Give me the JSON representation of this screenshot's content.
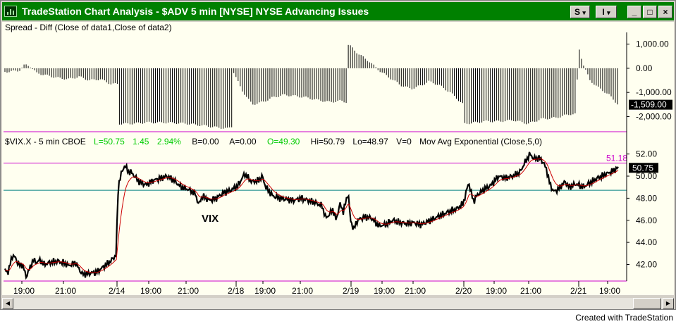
{
  "window": {
    "title": "TradeStation Chart Analysis - $ADV  5 min  [NYSE] NYSE Advancing Issues",
    "btn_s": "S",
    "btn_i": "I",
    "chevron": "▾",
    "minimize": "_",
    "maximize": "□",
    "close": "×"
  },
  "upper_panel": {
    "title": "Spread - Diff (Close of data1,Close of data2)",
    "y_ticks": [
      "1,000.00",
      "0.00",
      "-1,000.00",
      "-2,000.00"
    ],
    "last_value": "-1,509.00"
  },
  "lower_panel": {
    "header": {
      "symbol": "$VIX.X - 5 min  CBOE",
      "last": "L=50.75",
      "change": "1.45",
      "change_pct": "2.94%",
      "bid": "B=0.00",
      "ask": "A=0.00",
      "open": "O=49.30",
      "hi": "Hi=50.79",
      "lo": "Lo=48.97",
      "vol": "V=0",
      "indicator": "Mov Avg Exponential (Close,5,0)"
    },
    "y_ticks": [
      "52.00",
      "50.00",
      "48.00",
      "46.00",
      "44.00",
      "42.00"
    ],
    "last_value": "50.75",
    "ref_value": "51.18",
    "annotation": "VIX"
  },
  "x_axis": {
    "labels": [
      "19:00",
      "21:00",
      "2/14",
      "19:00",
      "21:00",
      "2/18",
      "19:00",
      "21:00",
      "2/19",
      "19:00",
      "21:00",
      "2/20",
      "19:00",
      "21:00",
      "2/21",
      "19:00"
    ]
  },
  "footer": {
    "credit": "Created with TradeStation"
  },
  "colors": {
    "title_bar": "#008000",
    "chart_bg": "#fffff0",
    "green_text": "#00cc00",
    "magenta_line": "#cc00cc",
    "teal_line": "#008080",
    "ema_line": "#cc0000",
    "last_box": "#000000"
  },
  "chart_data": [
    {
      "type": "bar",
      "title": "Spread - Diff (Close of data1,Close of data2)",
      "ylim": [
        -2600,
        1400
      ],
      "yticks": [
        1000,
        0,
        -1000,
        -2000
      ],
      "anchors": [
        [
          0,
          -150
        ],
        [
          20,
          -100
        ],
        [
          28,
          150
        ],
        [
          35,
          100
        ],
        [
          45,
          -200
        ],
        [
          60,
          -300
        ],
        [
          75,
          -400
        ],
        [
          90,
          -450
        ],
        [
          105,
          -350
        ],
        [
          120,
          -500
        ],
        [
          135,
          -450
        ],
        [
          150,
          -650
        ],
        [
          159,
          -650
        ],
        [
          160,
          -2300
        ],
        [
          175,
          -2300
        ],
        [
          200,
          -2250
        ],
        [
          230,
          -2250
        ],
        [
          260,
          -2300
        ],
        [
          300,
          -2450
        ],
        [
          315,
          -2500
        ],
        [
          322,
          -2400
        ],
        [
          323,
          -100
        ],
        [
          335,
          -900
        ],
        [
          350,
          -1500
        ],
        [
          365,
          -1400
        ],
        [
          380,
          -1200
        ],
        [
          395,
          -1100
        ],
        [
          410,
          -1150
        ],
        [
          425,
          -1200
        ],
        [
          440,
          -1300
        ],
        [
          460,
          -1400
        ],
        [
          475,
          -1350
        ],
        [
          483,
          -1400
        ],
        [
          484,
          1000
        ],
        [
          490,
          900
        ],
        [
          500,
          600
        ],
        [
          515,
          300
        ],
        [
          530,
          -100
        ],
        [
          545,
          -400
        ],
        [
          560,
          -700
        ],
        [
          575,
          -850
        ],
        [
          590,
          -700
        ],
        [
          600,
          -550
        ],
        [
          615,
          -700
        ],
        [
          630,
          -1000
        ],
        [
          645,
          -1400
        ],
        [
          649,
          -1500
        ],
        [
          650,
          -2300
        ],
        [
          680,
          -2200
        ],
        [
          700,
          -2200
        ],
        [
          720,
          -2150
        ],
        [
          740,
          -2300
        ],
        [
          760,
          -2100
        ],
        [
          780,
          -2050
        ],
        [
          800,
          -1900
        ],
        [
          808,
          -1900
        ],
        [
          812,
          900
        ],
        [
          818,
          200
        ],
        [
          828,
          -500
        ],
        [
          840,
          -800
        ],
        [
          855,
          -1100
        ],
        [
          868,
          -1509
        ]
      ]
    },
    {
      "type": "line",
      "title": "$VIX.X - 5 min  CBOE",
      "ylim": [
        40.5,
        53.0
      ],
      "yticks": [
        52,
        50,
        48,
        46,
        44,
        42
      ],
      "reference_lines": [
        51.18,
        48.72
      ],
      "series": [
        {
          "name": "$VIX.X",
          "points": [
            [
              0,
              41.5
            ],
            [
              5,
              41.3
            ],
            [
              10,
              42.8
            ],
            [
              15,
              42.6
            ],
            [
              20,
              41.9
            ],
            [
              25,
              42.0
            ],
            [
              30,
              40.9
            ],
            [
              35,
              41.6
            ],
            [
              40,
              42.4
            ],
            [
              45,
              42.2
            ],
            [
              50,
              42.4
            ],
            [
              55,
              42.0
            ],
            [
              65,
              42.2
            ],
            [
              75,
              42.3
            ],
            [
              85,
              42.1
            ],
            [
              90,
              41.9
            ],
            [
              95,
              42.0
            ],
            [
              100,
              42.2
            ],
            [
              105,
              41.6
            ],
            [
              110,
              41.1
            ],
            [
              120,
              41.2
            ],
            [
              130,
              41.3
            ],
            [
              140,
              41.8
            ],
            [
              150,
              42.3
            ],
            [
              158,
              42.9
            ],
            [
              160,
              48.2
            ],
            [
              162,
              49.5
            ],
            [
              165,
              50.2
            ],
            [
              170,
              51.0
            ],
            [
              175,
              50.4
            ],
            [
              180,
              50.3
            ],
            [
              190,
              49.5
            ],
            [
              200,
              49.2
            ],
            [
              210,
              49.6
            ],
            [
              220,
              49.8
            ],
            [
              230,
              50.0
            ],
            [
              240,
              49.6
            ],
            [
              250,
              49.0
            ],
            [
              260,
              48.8
            ],
            [
              270,
              48.4
            ],
            [
              275,
              47.4
            ],
            [
              280,
              48.2
            ],
            [
              290,
              47.8
            ],
            [
              300,
              48.0
            ],
            [
              310,
              48.5
            ],
            [
              320,
              48.7
            ],
            [
              330,
              49.1
            ],
            [
              340,
              50.2
            ],
            [
              350,
              49.5
            ],
            [
              360,
              49.6
            ],
            [
              365,
              50.0
            ],
            [
              370,
              49.0
            ],
            [
              380,
              48.2
            ],
            [
              390,
              48.0
            ],
            [
              400,
              47.9
            ],
            [
              410,
              47.8
            ],
            [
              420,
              48.0
            ],
            [
              430,
              47.8
            ],
            [
              440,
              47.6
            ],
            [
              450,
              47.3
            ],
            [
              455,
              46.2
            ],
            [
              460,
              46.5
            ],
            [
              465,
              47.0
            ],
            [
              470,
              46.0
            ],
            [
              475,
              47.5
            ],
            [
              480,
              46.8
            ],
            [
              485,
              48.0
            ],
            [
              487,
              48.6
            ],
            [
              490,
              46.0
            ],
            [
              495,
              45.2
            ],
            [
              500,
              46.0
            ],
            [
              510,
              46.3
            ],
            [
              520,
              46.2
            ],
            [
              530,
              45.5
            ],
            [
              540,
              45.6
            ],
            [
              550,
              46.0
            ],
            [
              560,
              45.8
            ],
            [
              570,
              45.7
            ],
            [
              580,
              45.8
            ],
            [
              590,
              45.6
            ],
            [
              600,
              45.9
            ],
            [
              610,
              46.2
            ],
            [
              620,
              46.5
            ],
            [
              630,
              46.8
            ],
            [
              640,
              47.0
            ],
            [
              650,
              47.5
            ],
            [
              655,
              48.7
            ],
            [
              658,
              49.5
            ],
            [
              660,
              48.8
            ],
            [
              665,
              47.7
            ],
            [
              670,
              48.3
            ],
            [
              680,
              48.8
            ],
            [
              690,
              49.2
            ],
            [
              700,
              50.0
            ],
            [
              710,
              49.8
            ],
            [
              720,
              50.0
            ],
            [
              730,
              50.3
            ],
            [
              740,
              51.5
            ],
            [
              745,
              52.0
            ],
            [
              750,
              51.6
            ],
            [
              760,
              51.6
            ],
            [
              768,
              50.7
            ],
            [
              772,
              49.5
            ],
            [
              778,
              48.6
            ],
            [
              785,
              48.8
            ],
            [
              790,
              49.2
            ],
            [
              795,
              49.5
            ],
            [
              800,
              49.0
            ],
            [
              810,
              49.3
            ],
            [
              820,
              49.0
            ],
            [
              830,
              49.4
            ],
            [
              840,
              49.8
            ],
            [
              850,
              50.1
            ],
            [
              860,
              50.4
            ],
            [
              870,
              50.75
            ]
          ]
        }
      ]
    }
  ]
}
